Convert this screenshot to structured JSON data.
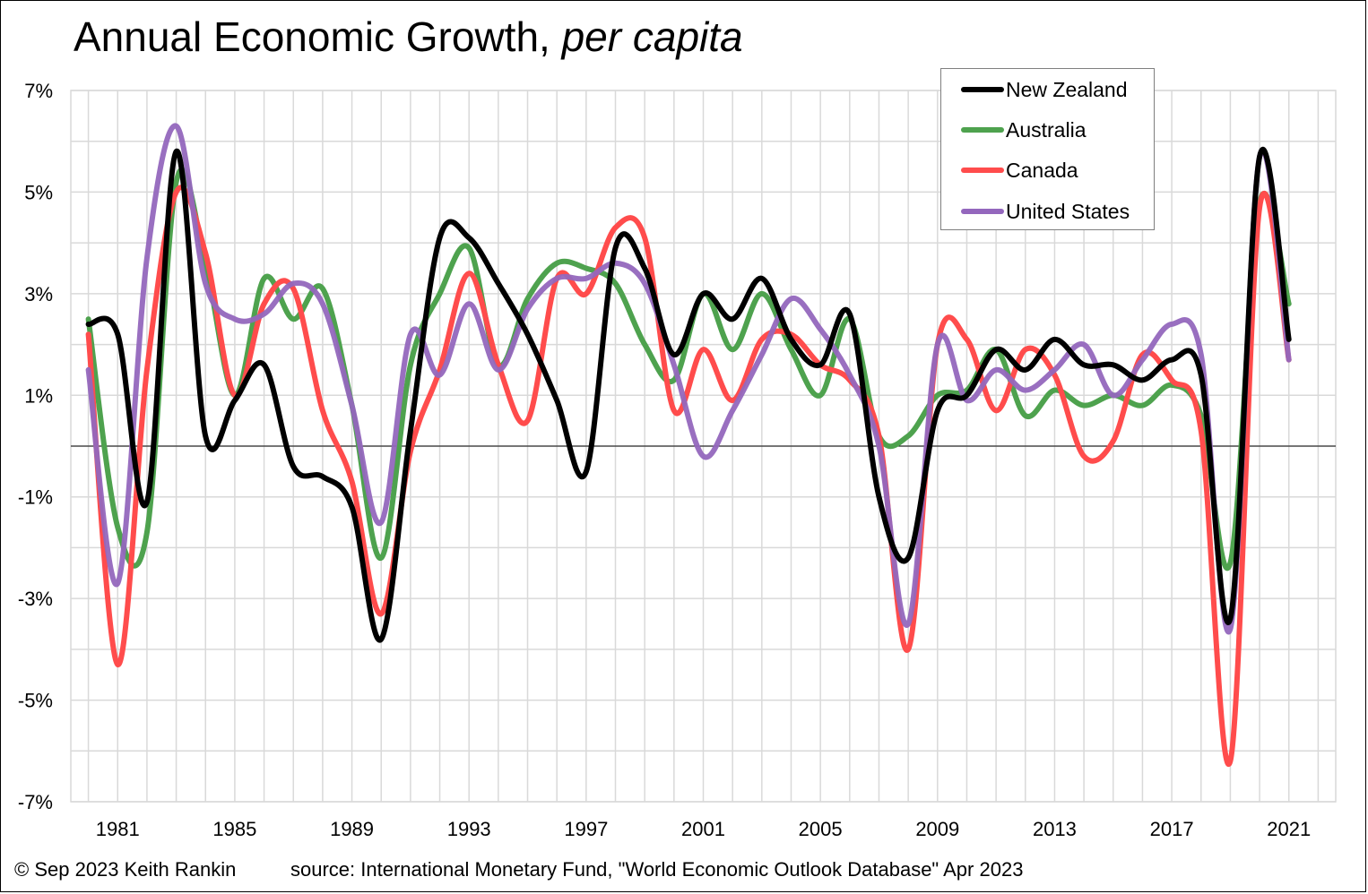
{
  "title": {
    "main": "Annual Economic Growth, ",
    "italic": "per capita"
  },
  "footer": {
    "copyright": "© Sep 2023 Keith Rankin",
    "source": "source: International Monetary Fund, \"World Economic Outlook Database\" Apr 2023"
  },
  "chart_data": {
    "type": "line",
    "title": "Annual Economic Growth, per capita",
    "xlabel": "",
    "ylabel": "",
    "x": [
      1980,
      1981,
      1982,
      1983,
      1984,
      1985,
      1986,
      1987,
      1988,
      1989,
      1990,
      1991,
      1992,
      1993,
      1994,
      1995,
      1996,
      1997,
      1998,
      1999,
      2000,
      2001,
      2002,
      2003,
      2004,
      2005,
      2006,
      2007,
      2008,
      2009,
      2010,
      2011,
      2012,
      2013,
      2014,
      2015,
      2016,
      2017,
      2018,
      2019,
      2020,
      2021,
      2022
    ],
    "xlim": [
      1979.4,
      2022.6
    ],
    "ylim": [
      -7,
      7
    ],
    "xticks": [
      1981,
      1985,
      1989,
      1993,
      1997,
      2001,
      2005,
      2009,
      2013,
      2017,
      2021
    ],
    "yticks": [
      -7,
      -5,
      -3,
      -1,
      1,
      3,
      5,
      7
    ],
    "ytick_labels": [
      "-7%",
      "-5%",
      "-3%",
      "-1%",
      "1%",
      "3%",
      "5%",
      "7%"
    ],
    "grid": true,
    "zero_line": true,
    "legend_position": "top-right",
    "series": [
      {
        "name": "New Zealand",
        "color": "#000000",
        "values": [
          2.4,
          2.2,
          -1.1,
          5.8,
          0.2,
          0.9,
          1.6,
          -0.4,
          -0.6,
          -1.2,
          -3.8,
          0.3,
          4.1,
          4.1,
          3.2,
          2.2,
          0.9,
          -0.5,
          3.9,
          3.5,
          1.8,
          3.0,
          2.5,
          3.3,
          2.1,
          1.6,
          2.6,
          -1.0,
          -2.2,
          0.7,
          1.0,
          1.9,
          1.5,
          2.1,
          1.6,
          1.6,
          1.3,
          1.7,
          1.4,
          -3.4,
          5.7,
          2.1,
          null
        ]
      },
      {
        "name": "Australia",
        "color": "#4ea24e",
        "values": [
          2.5,
          -1.6,
          -1.7,
          5.2,
          3.6,
          1.0,
          3.3,
          2.5,
          3.1,
          0.8,
          -2.2,
          1.6,
          3.0,
          3.9,
          1.6,
          2.9,
          3.6,
          3.5,
          3.2,
          2.0,
          1.3,
          3.0,
          1.9,
          3.0,
          1.9,
          1.0,
          2.5,
          0.2,
          0.2,
          1.0,
          1.1,
          1.9,
          0.6,
          1.1,
          0.8,
          1.0,
          0.8,
          1.2,
          0.6,
          -2.3,
          4.8,
          2.8,
          null
        ]
      },
      {
        "name": "Canada",
        "color": "#ff4c4c",
        "values": [
          2.2,
          -4.3,
          1.5,
          5.0,
          3.8,
          1.0,
          2.8,
          3.1,
          0.7,
          -0.7,
          -3.3,
          -0.1,
          1.5,
          3.4,
          1.6,
          0.5,
          3.3,
          3.0,
          4.3,
          4.1,
          0.7,
          1.9,
          0.9,
          2.1,
          2.2,
          1.6,
          1.3,
          0.2,
          -4.0,
          2.0,
          2.1,
          0.7,
          1.9,
          1.4,
          -0.2,
          0.1,
          1.8,
          1.3,
          0.3,
          -6.2,
          4.7,
          1.7,
          null
        ]
      },
      {
        "name": "United States",
        "color": "#9467bd",
        "values": [
          1.5,
          -2.7,
          3.7,
          6.3,
          3.2,
          2.5,
          2.6,
          3.2,
          2.8,
          0.8,
          -1.5,
          2.2,
          1.4,
          2.8,
          1.5,
          2.7,
          3.3,
          3.3,
          3.6,
          3.2,
          1.6,
          -0.2,
          0.7,
          1.8,
          2.9,
          2.3,
          1.4,
          0.0,
          -3.5,
          2.0,
          0.9,
          1.5,
          1.1,
          1.5,
          2.0,
          1.0,
          1.7,
          2.4,
          1.8,
          -3.6,
          5.7,
          1.7,
          null
        ]
      }
    ]
  }
}
